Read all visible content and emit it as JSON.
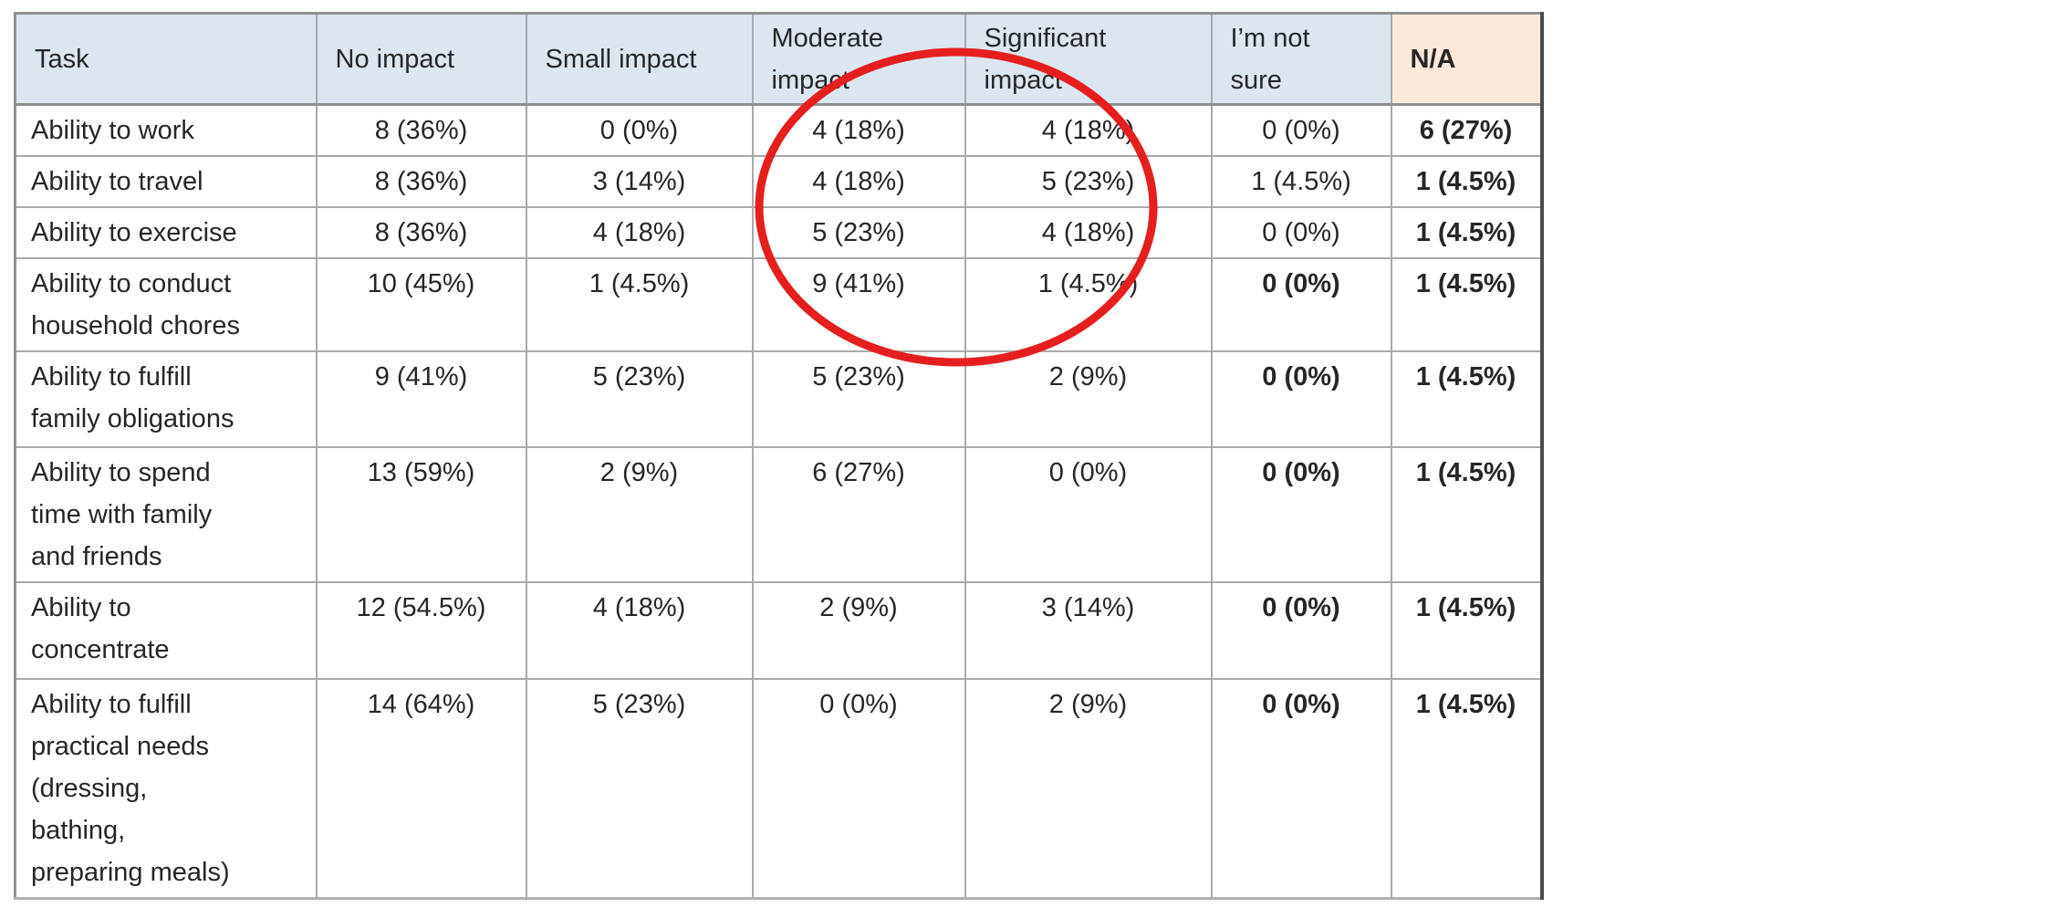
{
  "colors": {
    "header_bg": "#dce6f1",
    "na_header_bg": "#fde9d9",
    "text": "#262626",
    "grid": "#a9a9a9"
  },
  "annotation": {
    "shape": "ellipse",
    "color": "#e51f1f",
    "highlights": "Moderate impact and Significant impact values for the first four tasks"
  },
  "table": {
    "header": {
      "columns": [
        {
          "label": "Task"
        },
        {
          "label": "No impact"
        },
        {
          "label": "Small impact"
        },
        {
          "label": "Moderate\nimpact"
        },
        {
          "label": "Significant\nimpact"
        },
        {
          "label": "I’m not\nsure"
        },
        {
          "label": "N/A"
        }
      ]
    },
    "rows": [
      {
        "task": "Ability to work",
        "cells": [
          "8 (36%)",
          "0 (0%)",
          "4 (18%)",
          "4 (18%)",
          "0 (0%)",
          "6 (27%)"
        ],
        "bold": [
          false,
          false,
          false,
          false,
          false,
          true
        ]
      },
      {
        "task": "Ability to travel",
        "cells": [
          "8 (36%)",
          "3 (14%)",
          "4 (18%)",
          "5 (23%)",
          "1 (4.5%)",
          "1 (4.5%)"
        ],
        "bold": [
          false,
          false,
          false,
          false,
          false,
          true
        ]
      },
      {
        "task": "Ability to exercise",
        "cells": [
          "8 (36%)",
          "4 (18%)",
          "5 (23%)",
          "4 (18%)",
          "0 (0%)",
          "1 (4.5%)"
        ],
        "bold": [
          false,
          false,
          false,
          false,
          false,
          true
        ]
      },
      {
        "task": "Ability to conduct\nhousehold chores",
        "cells": [
          "10 (45%)",
          "1 (4.5%)",
          "9 (41%)",
          "1 (4.5%)",
          "0 (0%)",
          "1 (4.5%)"
        ],
        "bold": [
          false,
          false,
          false,
          false,
          true,
          true
        ]
      },
      {
        "task": "Ability to fulfill\nfamily obligations",
        "cells": [
          "9 (41%)",
          "5 (23%)",
          "5 (23%)",
          "2 (9%)",
          "0 (0%)",
          "1 (4.5%)"
        ],
        "bold": [
          false,
          false,
          false,
          false,
          true,
          true
        ]
      },
      {
        "task": "Ability to spend\ntime with family\nand friends",
        "cells": [
          "13 (59%)",
          "2 (9%)",
          "6 (27%)",
          "0 (0%)",
          "0 (0%)",
          "1 (4.5%)"
        ],
        "bold": [
          false,
          false,
          false,
          false,
          true,
          true
        ]
      },
      {
        "task": "Ability to\nconcentrate",
        "cells": [
          "12 (54.5%)",
          "4 (18%)",
          "2 (9%)",
          "3 (14%)",
          "0 (0%)",
          "1 (4.5%)"
        ],
        "bold": [
          false,
          false,
          false,
          false,
          true,
          true
        ]
      },
      {
        "task": "Ability to fulfill\npractical needs\n(dressing,\nbathing,\npreparing meals)",
        "cells": [
          "14 (64%)",
          "5 (23%)",
          "0 (0%)",
          "2 (9%)",
          "0 (0%)",
          "1 (4.5%)"
        ],
        "bold": [
          false,
          false,
          false,
          false,
          true,
          true
        ]
      }
    ]
  }
}
